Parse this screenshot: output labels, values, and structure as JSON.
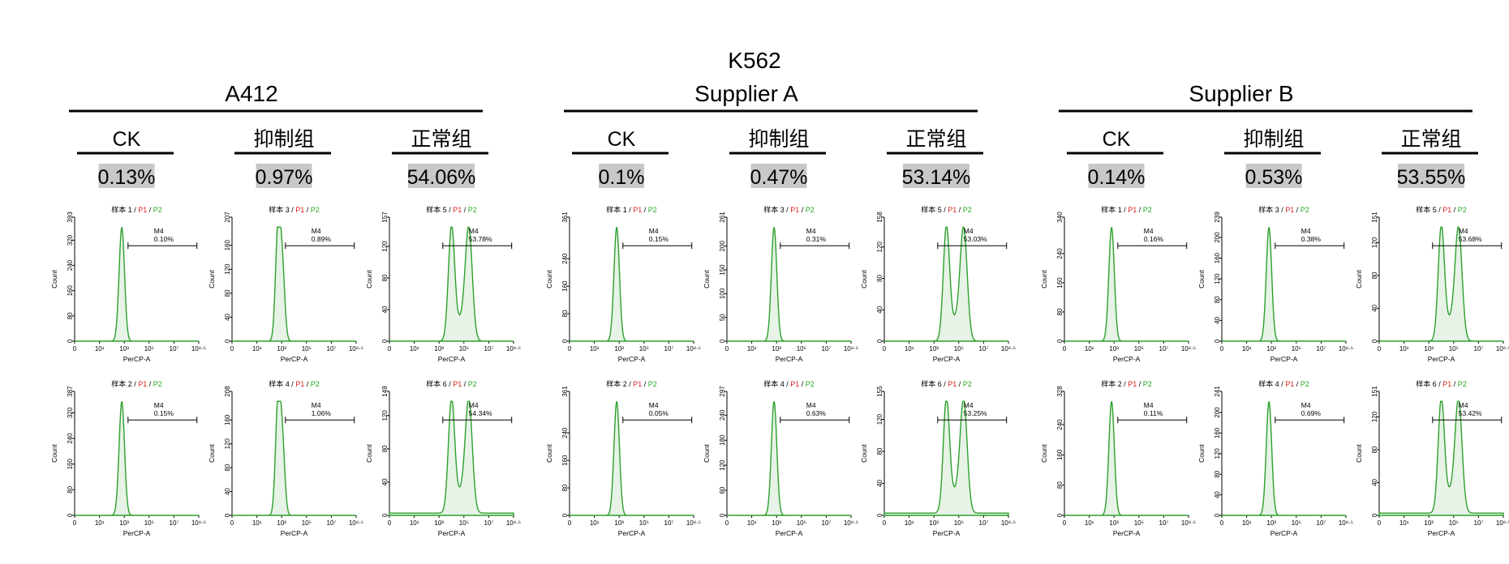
{
  "chart_data": {
    "type": "histogram-grid",
    "title": "K562",
    "xlabel": "PerCP-A",
    "ylabel": "Count",
    "x_ticks": [
      "0",
      "10¹",
      "10³",
      "10⁵",
      "10⁷",
      "10⁸·⁵"
    ],
    "gate_label": "P1",
    "subgate_label": "P2",
    "marker_name": "M4",
    "groups": [
      {
        "name": "A412",
        "conditions": [
          {
            "name": "CK",
            "percent": "0.13%",
            "shape": "single",
            "panels": [
              {
                "sample": "样本 1",
                "ymax": 393,
                "yticks": [
                  0,
                  80,
                  160,
                  240,
                  320,
                  393
                ],
                "m4": "0.10%"
              },
              {
                "sample": "样本 2",
                "ymax": 387,
                "yticks": [
                  0,
                  80,
                  160,
                  240,
                  320,
                  387
                ],
                "m4": "0.15%"
              }
            ]
          },
          {
            "name": "抑制组",
            "percent": "0.97%",
            "shape": "shoulder",
            "panels": [
              {
                "sample": "样本 3",
                "ymax": 207,
                "yticks": [
                  0,
                  40,
                  80,
                  120,
                  160,
                  207
                ],
                "m4": "0.89%"
              },
              {
                "sample": "样本 4",
                "ymax": 208,
                "yticks": [
                  0,
                  40,
                  80,
                  120,
                  160,
                  208
                ],
                "m4": "1.06%"
              }
            ]
          },
          {
            "name": "正常组",
            "percent": "54.06%",
            "shape": "bimodal",
            "panels": [
              {
                "sample": "样本 5",
                "ymax": 157,
                "yticks": [
                  0,
                  40,
                  80,
                  120,
                  157
                ],
                "m4": "53.78%"
              },
              {
                "sample": "样本 6",
                "ymax": 149,
                "yticks": [
                  0,
                  40,
                  80,
                  120,
                  149
                ],
                "m4": "54.34%"
              }
            ]
          }
        ]
      },
      {
        "name": "Supplier A",
        "conditions": [
          {
            "name": "CK",
            "percent": "0.1%",
            "shape": "single",
            "panels": [
              {
                "sample": "样本 1",
                "ymax": 361,
                "yticks": [
                  0,
                  80,
                  160,
                  240,
                  361
                ],
                "m4": "0.15%"
              },
              {
                "sample": "样本 2",
                "ymax": 361,
                "yticks": [
                  0,
                  80,
                  160,
                  240,
                  361
                ],
                "m4": "0.05%"
              }
            ]
          },
          {
            "name": "抑制组",
            "percent": "0.47%",
            "shape": "single",
            "panels": [
              {
                "sample": "样本 3",
                "ymax": 261,
                "yticks": [
                  0,
                  50,
                  100,
                  150,
                  200,
                  261
                ],
                "m4": "0.31%"
              },
              {
                "sample": "样本 4",
                "ymax": 297,
                "yticks": [
                  0,
                  60,
                  120,
                  180,
                  240,
                  297
                ],
                "m4": "0.63%"
              }
            ]
          },
          {
            "name": "正常组",
            "percent": "53.14%",
            "shape": "bimodal",
            "panels": [
              {
                "sample": "样本 5",
                "ymax": 158,
                "yticks": [
                  0,
                  40,
                  80,
                  120,
                  158
                ],
                "m4": "53.03%"
              },
              {
                "sample": "样本 6",
                "ymax": 155,
                "yticks": [
                  0,
                  40,
                  80,
                  120,
                  155
                ],
                "m4": "53.25%"
              }
            ]
          }
        ]
      },
      {
        "name": "Supplier B",
        "conditions": [
          {
            "name": "CK",
            "percent": "0.14%",
            "shape": "single",
            "panels": [
              {
                "sample": "样本 1",
                "ymax": 340,
                "yticks": [
                  0,
                  80,
                  160,
                  240,
                  340
                ],
                "m4": "0.16%"
              },
              {
                "sample": "样本 2",
                "ymax": 328,
                "yticks": [
                  0,
                  80,
                  160,
                  240,
                  328
                ],
                "m4": "0.11%"
              }
            ]
          },
          {
            "name": "抑制组",
            "percent": "0.53%",
            "shape": "single",
            "panels": [
              {
                "sample": "样本 3",
                "ymax": 239,
                "yticks": [
                  0,
                  40,
                  80,
                  120,
                  160,
                  200,
                  239
                ],
                "m4": "0.38%"
              },
              {
                "sample": "样本 4",
                "ymax": 241,
                "yticks": [
                  0,
                  40,
                  80,
                  120,
                  160,
                  200,
                  241
                ],
                "m4": "0.69%"
              }
            ]
          },
          {
            "name": "正常组",
            "percent": "53.55%",
            "shape": "bimodal",
            "panels": [
              {
                "sample": "样本 5",
                "ymax": 151,
                "yticks": [
                  0,
                  40,
                  80,
                  120,
                  151
                ],
                "m4": "53.68%"
              },
              {
                "sample": "样本 6",
                "ymax": 151,
                "yticks": [
                  0,
                  40,
                  80,
                  120,
                  151
                ],
                "m4": "53.42%"
              }
            ]
          }
        ]
      }
    ]
  }
}
